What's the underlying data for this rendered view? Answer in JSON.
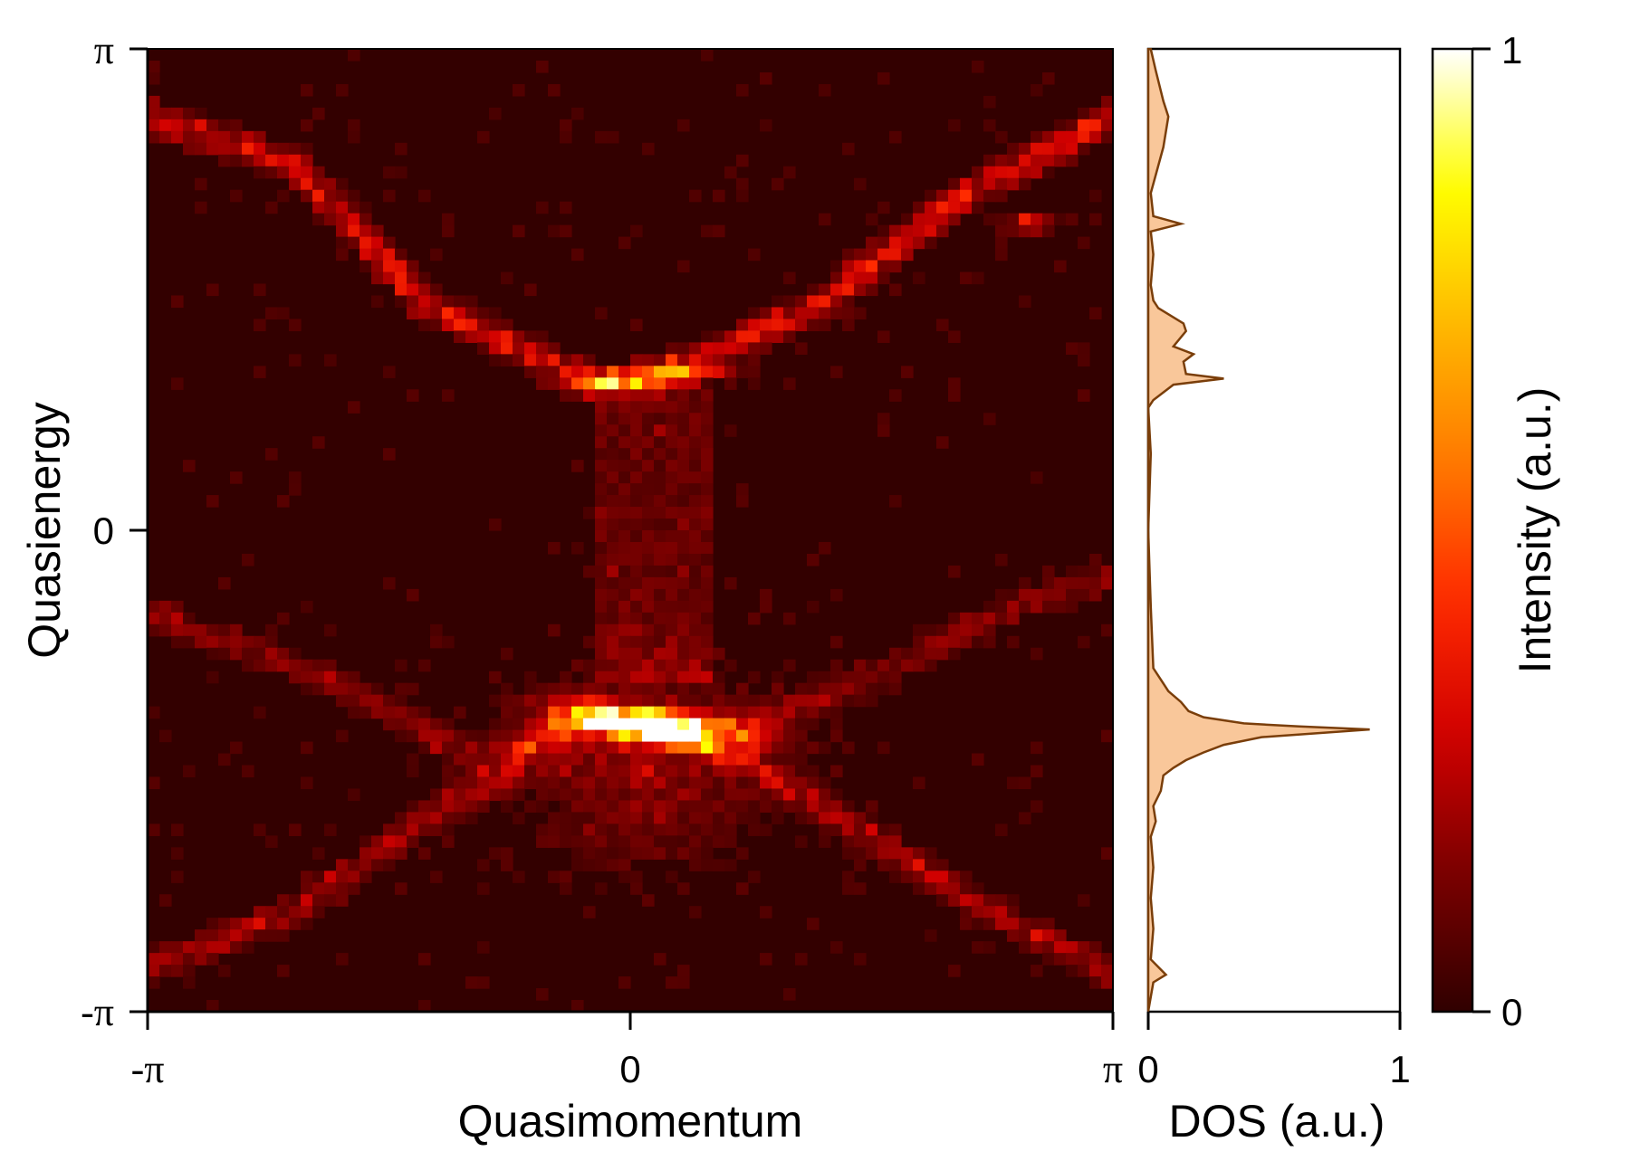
{
  "chart_data": [
    {
      "type": "heatmap",
      "xlabel": "Quasimomentum",
      "ylabel": "Quasienergy",
      "x_ticks": [
        "-π",
        "0",
        "π"
      ],
      "y_ticks": [
        "-π",
        "0",
        "π"
      ],
      "xlim": [
        -3.14159,
        3.14159
      ],
      "ylim": [
        -3.14159,
        3.14159
      ],
      "grid": false,
      "colormap": [
        "#300000",
        "#7a0000",
        "#d00000",
        "#ff2a00",
        "#ff7a00",
        "#ffb800",
        "#ffff00",
        "#ffffff"
      ],
      "background_color": "#330000",
      "features": [
        {
          "kind": "band",
          "points": [
            [
              -3.14,
              2.7
            ],
            [
              -2.2,
              2.4
            ],
            [
              -1.3,
              1.45
            ],
            [
              -0.2,
              0.95
            ],
            [
              0.4,
              1.1
            ],
            [
              1.2,
              1.45
            ],
            [
              2.2,
              2.2
            ],
            [
              3.14,
              2.7
            ]
          ],
          "intensity": 0.3
        },
        {
          "kind": "band",
          "points": [
            [
              -3.14,
              -2.85
            ],
            [
              -2.2,
              -2.5
            ],
            [
              -1.2,
              -1.8
            ],
            [
              -0.3,
              -1.25
            ],
            [
              0.5,
              -1.35
            ],
            [
              1.3,
              -1.85
            ],
            [
              2.2,
              -2.4
            ],
            [
              3.14,
              -2.9
            ]
          ],
          "intensity": 0.2
        },
        {
          "kind": "band",
          "points": [
            [
              -3.14,
              -0.55
            ],
            [
              -2.0,
              -0.95
            ],
            [
              -1.0,
              -1.5
            ],
            [
              -0.3,
              -1.28
            ]
          ],
          "intensity": 0.15
        },
        {
          "kind": "band",
          "points": [
            [
              0.5,
              -1.4
            ],
            [
              1.5,
              -1.0
            ],
            [
              2.5,
              -0.5
            ],
            [
              3.14,
              -0.3
            ]
          ],
          "intensity": 0.15
        },
        {
          "kind": "blob",
          "x": 0.15,
          "y": -1.27,
          "sx": 0.38,
          "sy": 0.07,
          "tilt": -0.12,
          "intensity": 1.0
        },
        {
          "kind": "blob",
          "x": 0.1,
          "y": 0.99,
          "sx": 0.3,
          "sy": 0.045,
          "tilt": 0.1,
          "intensity": 0.6
        },
        {
          "kind": "blob",
          "x": 2.6,
          "y": 2.0,
          "sx": 0.12,
          "sy": 0.03,
          "tilt": 0,
          "intensity": 0.45
        },
        {
          "kind": "haze",
          "x": 0.1,
          "y": -1.5,
          "sx": 0.6,
          "sy": 0.45,
          "intensity": 0.18
        },
        {
          "kind": "column",
          "x": 0.15,
          "y_from": -1.0,
          "y_to": 0.9,
          "width": 0.35,
          "intensity": 0.1
        }
      ]
    },
    {
      "type": "area",
      "orientation": "horizontal",
      "xlabel": "DOS (a.u.)",
      "x_ticks": [
        "0",
        "1"
      ],
      "xlim": [
        0,
        1
      ],
      "ylim": [
        -3.14159,
        3.14159
      ],
      "fill_color": "#f9c79a",
      "line_color": "#7a3e0a",
      "y": [
        -3.14,
        -2.95,
        -2.9,
        -2.85,
        -2.8,
        -2.6,
        -2.4,
        -2.2,
        -2.0,
        -1.9,
        -1.8,
        -1.7,
        -1.6,
        -1.55,
        -1.5,
        -1.45,
        -1.4,
        -1.35,
        -1.3,
        -1.28,
        -1.26,
        -1.22,
        -1.18,
        -1.12,
        -1.05,
        -1.0,
        -0.9,
        -0.5,
        0,
        0.5,
        0.8,
        0.85,
        0.95,
        0.99,
        1.02,
        1.1,
        1.15,
        1.2,
        1.3,
        1.35,
        1.45,
        1.5,
        1.6,
        1.8,
        1.95,
        2.0,
        2.05,
        2.2,
        2.5,
        2.7,
        2.8,
        3.0,
        3.14
      ],
      "x": [
        0.0,
        0.02,
        0.07,
        0.04,
        0.01,
        0.02,
        0.01,
        0.02,
        0.01,
        0.03,
        0.02,
        0.05,
        0.06,
        0.1,
        0.15,
        0.22,
        0.3,
        0.45,
        0.88,
        0.6,
        0.38,
        0.22,
        0.16,
        0.13,
        0.08,
        0.06,
        0.02,
        0.01,
        0.0,
        0.01,
        0.0,
        0.02,
        0.1,
        0.3,
        0.15,
        0.14,
        0.18,
        0.1,
        0.15,
        0.14,
        0.04,
        0.02,
        0.01,
        0.02,
        0.01,
        0.13,
        0.02,
        0.01,
        0.06,
        0.08,
        0.06,
        0.03,
        0.01
      ]
    },
    {
      "type": "colorbar",
      "ylabel": "Intensity (a.u.)",
      "ticks": [
        "0",
        "1"
      ],
      "ylim": [
        0,
        1
      ]
    }
  ]
}
